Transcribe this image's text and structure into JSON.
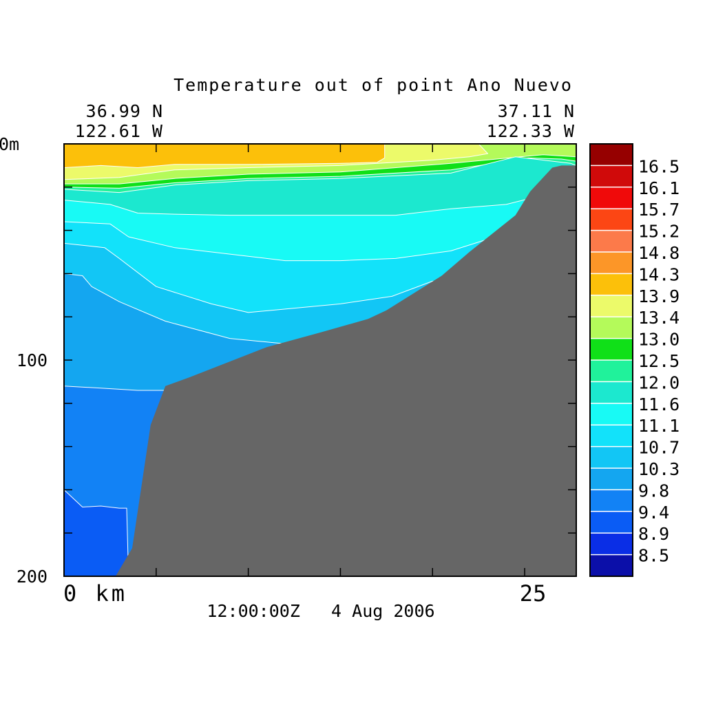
{
  "chart_data": {
    "type": "heatmap",
    "title": "Temperature out of point Ano Nuevo",
    "start_lat": "36.99 N",
    "start_lon": "122.61 W",
    "end_lat": "37.11 N",
    "end_lon": "122.33 W",
    "date": "12:00:00Z   4 Aug 2006",
    "depth_unit_label": "0m",
    "x_unit_label": "0 km",
    "xlim": [
      0,
      27.8
    ],
    "ylim": [
      200,
      0
    ],
    "x_ticks": [
      0,
      5,
      10,
      15,
      20,
      25
    ],
    "x_tick_labels": [
      "25"
    ],
    "y_ticks": [
      0,
      20,
      40,
      60,
      80,
      100,
      120,
      140,
      160,
      180,
      200
    ],
    "y_tick_labels": [
      "100",
      "200"
    ],
    "colorbar": {
      "colors": [
        "#0b0fa9",
        "#0a2ee6",
        "#0a5cf5",
        "#1282f5",
        "#14a6f0",
        "#12c6f5",
        "#12e2fa",
        "#18faf5",
        "#1ce8cf",
        "#20f29b",
        "#10e018",
        "#b4fa5a",
        "#ecfa6a",
        "#fcc00a",
        "#fc9628",
        "#fc7a4a",
        "#fc4614",
        "#f00a0a",
        "#d00a0a",
        "#960000"
      ],
      "labels": [
        "8.5",
        "8.9",
        "9.4",
        "9.8",
        "10.3",
        "10.7",
        "11.1",
        "11.6",
        "12.0",
        "12.5",
        "13.0",
        "13.4",
        "13.9",
        "14.3",
        "14.8",
        "15.2",
        "15.7",
        "16.1",
        "16.5"
      ]
    },
    "bathymetry": [
      [
        0,
        200
      ],
      [
        2.8,
        200
      ],
      [
        3.7,
        187
      ],
      [
        4.7,
        130
      ],
      [
        5.5,
        112
      ],
      [
        6.8,
        108
      ],
      [
        11,
        94
      ],
      [
        14,
        87
      ],
      [
        16.5,
        81
      ],
      [
        17.5,
        77
      ],
      [
        20.5,
        61
      ],
      [
        22,
        50
      ],
      [
        24.5,
        33
      ],
      [
        25.3,
        22
      ],
      [
        26.5,
        11
      ],
      [
        27,
        10
      ],
      [
        27.8,
        10
      ],
      [
        27.8,
        200
      ]
    ],
    "temperature_bands": [
      {
        "level": 8.9,
        "points": [
          [
            0,
            200
          ],
          [
            0,
            160
          ],
          [
            1,
            168
          ],
          [
            2,
            167.5
          ],
          [
            3,
            168.5
          ],
          [
            3.4,
            168.5
          ],
          [
            3.5,
            200
          ]
        ]
      },
      {
        "level": 9.4,
        "points": [
          [
            0,
            200
          ],
          [
            0,
            112
          ],
          [
            2,
            113
          ],
          [
            4,
            114
          ],
          [
            6.5,
            114
          ],
          [
            6.5,
            125
          ],
          [
            3.5,
            200
          ]
        ]
      },
      {
        "level": 9.8,
        "points": [
          [
            0,
            200
          ],
          [
            0,
            60
          ],
          [
            1,
            61
          ],
          [
            1.5,
            66
          ],
          [
            3,
            73
          ],
          [
            5.5,
            82
          ],
          [
            9,
            90
          ],
          [
            12,
            92.5
          ],
          [
            14.7,
            93
          ],
          [
            14.7,
            100
          ],
          [
            11,
            106
          ],
          [
            6.5,
            125
          ],
          [
            3.5,
            200
          ]
        ]
      },
      {
        "level": 10.3,
        "points": [
          [
            0,
            200
          ],
          [
            0,
            46
          ],
          [
            2.2,
            48
          ],
          [
            3,
            53
          ],
          [
            5,
            66
          ],
          [
            8,
            74
          ],
          [
            10,
            78
          ],
          [
            15,
            74
          ],
          [
            17.8,
            70.5
          ],
          [
            20,
            63.5
          ],
          [
            20.8,
            63.5
          ],
          [
            21,
            70
          ],
          [
            20,
            80
          ],
          [
            14,
            90
          ],
          [
            6,
            118
          ],
          [
            3.5,
            200
          ]
        ]
      },
      {
        "level": 10.7,
        "points": [
          [
            0,
            200
          ],
          [
            0,
            36
          ],
          [
            2.5,
            37
          ],
          [
            3.5,
            43
          ],
          [
            6,
            48
          ],
          [
            9,
            51
          ],
          [
            12,
            54
          ],
          [
            15,
            54
          ],
          [
            18,
            53
          ],
          [
            21,
            49.5
          ],
          [
            24.5,
            40
          ],
          [
            26,
            29
          ],
          [
            27.2,
            25
          ],
          [
            27.8,
            25
          ],
          [
            27.8,
            200
          ]
        ]
      },
      {
        "level": 11.1,
        "points": [
          [
            0,
            200
          ],
          [
            0,
            26
          ],
          [
            2.5,
            28
          ],
          [
            4,
            32
          ],
          [
            6,
            32.5
          ],
          [
            9,
            33
          ],
          [
            12,
            33
          ],
          [
            15,
            33
          ],
          [
            18,
            33
          ],
          [
            21,
            30
          ],
          [
            24,
            28
          ],
          [
            26.3,
            23
          ],
          [
            27.8,
            22
          ],
          [
            27.8,
            200
          ]
        ]
      },
      {
        "level": 11.6,
        "points": [
          [
            0,
            200
          ],
          [
            0,
            21
          ],
          [
            3,
            22.5
          ],
          [
            6,
            19
          ],
          [
            10,
            17
          ],
          [
            15,
            16
          ],
          [
            21,
            13.5
          ],
          [
            24.5,
            6
          ],
          [
            27.5,
            9
          ],
          [
            27.8,
            10
          ],
          [
            27.8,
            200
          ]
        ]
      },
      {
        "level": 12.0,
        "points": [
          [
            0,
            200
          ],
          [
            0,
            20
          ],
          [
            3,
            20.5
          ],
          [
            6,
            18
          ],
          [
            10,
            16
          ],
          [
            15,
            15
          ],
          [
            21,
            12
          ],
          [
            25.2,
            6.5
          ],
          [
            27,
            7
          ],
          [
            27.8,
            8
          ],
          [
            27.8,
            200
          ]
        ]
      },
      {
        "level": 12.5,
        "points": [
          [
            0,
            200
          ],
          [
            0,
            18.5
          ],
          [
            3,
            18.5
          ],
          [
            6,
            16
          ],
          [
            10,
            14
          ],
          [
            15,
            13
          ],
          [
            21,
            9
          ],
          [
            26,
            5
          ],
          [
            27.8,
            6
          ],
          [
            27.8,
            200
          ]
        ]
      },
      {
        "level": 13.0,
        "points": [
          [
            0,
            200
          ],
          [
            0,
            16.5
          ],
          [
            3,
            15.5
          ],
          [
            6,
            12
          ],
          [
            10,
            11
          ],
          [
            15,
            10
          ],
          [
            20,
            7.5
          ],
          [
            22,
            6
          ],
          [
            23,
            4.5
          ],
          [
            22.5,
            0
          ],
          [
            27.8,
            0
          ],
          [
            27.8,
            200
          ]
        ]
      },
      {
        "level": 13.4,
        "points": [
          [
            0,
            200
          ],
          [
            0,
            11
          ],
          [
            2,
            10
          ],
          [
            4,
            11
          ],
          [
            6,
            9.5
          ],
          [
            10,
            9.5
          ],
          [
            15,
            9
          ],
          [
            17,
            8.5
          ],
          [
            17.4,
            6.5
          ],
          [
            17.4,
            0
          ],
          [
            27.8,
            0
          ],
          [
            27.8,
            200
          ]
        ]
      }
    ],
    "base_level": 13.9
  }
}
